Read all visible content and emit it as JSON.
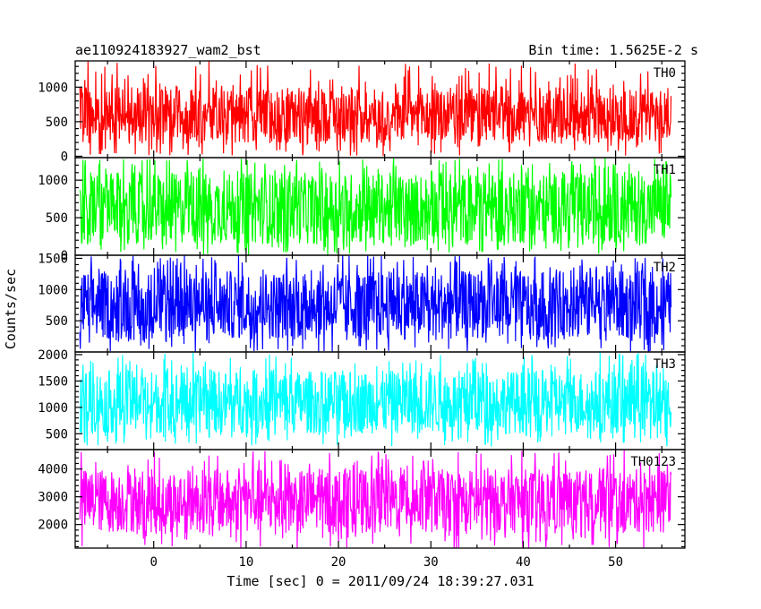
{
  "header": {
    "title": "ae110924183927_wam2_bst",
    "bin_time": "Bin time: 1.5625E-2 s"
  },
  "chart_data": {
    "type": "line",
    "title": "ae110924183927_wam2_bst",
    "subtitle": "Bin time: 1.5625E-2 s",
    "xlabel": "Time [sec] 0 = 2011/09/24 18:39:27.031",
    "ylabel": "Counts/sec",
    "xlim": [
      -8.5,
      57.5
    ],
    "x_data_range": [
      -8,
      56
    ],
    "x_ticks": [
      0,
      10,
      20,
      30,
      40,
      50
    ],
    "x_tick_labels": [
      "0",
      "10",
      "20",
      "30",
      "40",
      "50"
    ],
    "bin_time": 0.015625,
    "grid": false,
    "panels": [
      {
        "name": "TH0",
        "color": "#ff0000",
        "ylim": [
          -20,
          1380
        ],
        "y_ticks": [
          0,
          500,
          1000
        ],
        "y_tick_labels": [
          "0",
          "500",
          "1000"
        ],
        "typical_range": [
          180,
          1000
        ],
        "extremes": [
          0,
          1380
        ]
      },
      {
        "name": "TH1",
        "color": "#00ff00",
        "ylim": [
          0,
          1300
        ],
        "y_ticks": [
          0,
          500,
          1000
        ],
        "y_tick_labels": [
          "0",
          "500",
          "1000"
        ],
        "typical_range": [
          150,
          1100
        ],
        "extremes": [
          0,
          1300
        ]
      },
      {
        "name": "TH2",
        "color": "#0000ff",
        "ylim": [
          0,
          1550
        ],
        "y_ticks": [
          500,
          1000,
          1500
        ],
        "y_tick_labels": [
          "500",
          "1000",
          "1500"
        ],
        "typical_range": [
          200,
          1300
        ],
        "extremes": [
          0,
          1550
        ]
      },
      {
        "name": "TH3",
        "color": "#00ffff",
        "ylim": [
          200,
          2050
        ],
        "y_ticks": [
          500,
          1000,
          1500,
          2000
        ],
        "y_tick_labels": [
          "500",
          "1000",
          "1500",
          "2000"
        ],
        "typical_range": [
          500,
          1700
        ],
        "extremes": [
          250,
          2050
        ]
      },
      {
        "name": "TH0123",
        "color": "#ff00ff",
        "ylim": [
          1150,
          4700
        ],
        "y_ticks": [
          2000,
          3000,
          4000
        ],
        "y_tick_labels": [
          "2000",
          "3000",
          "4000"
        ],
        "typical_range": [
          1700,
          4000
        ],
        "extremes": [
          1150,
          4700
        ]
      }
    ]
  }
}
